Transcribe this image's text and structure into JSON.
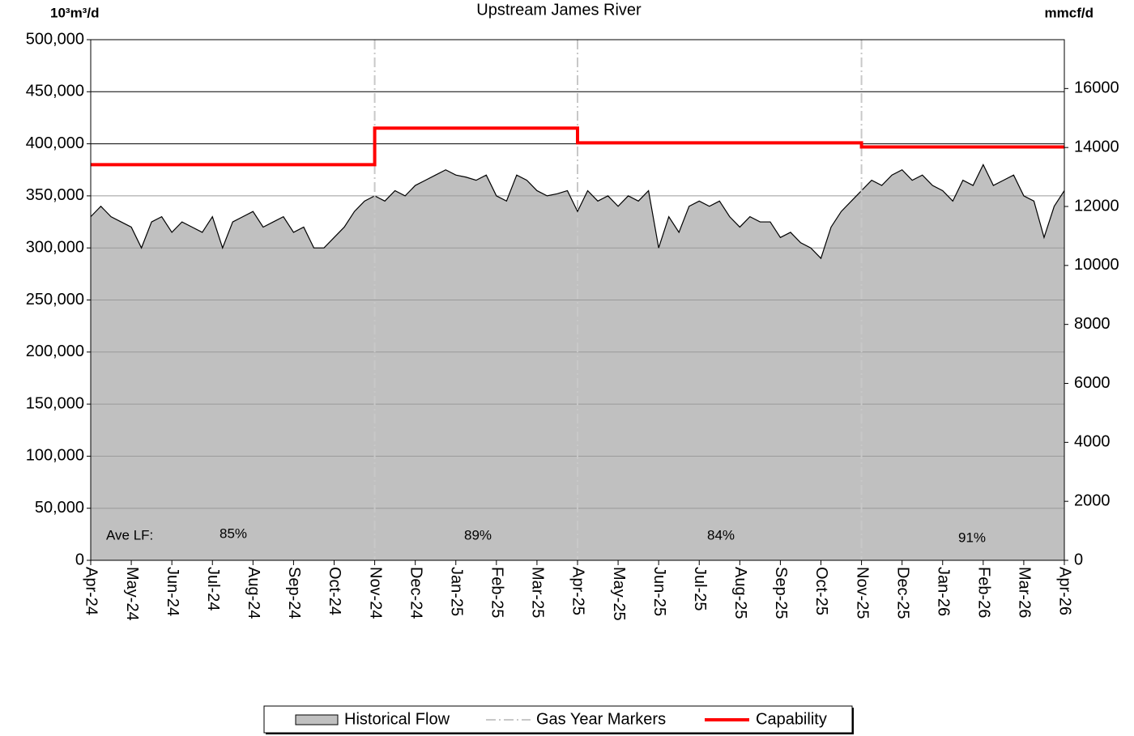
{
  "chart_data": {
    "type": "area",
    "title": "Upstream James River",
    "y_axis_label": "10³m³/d",
    "y2_axis_label": "mmcf/d",
    "xlim": [
      0,
      24
    ],
    "xticks": [
      {
        "value": 0,
        "label": "Apr-24"
      },
      {
        "value": 1,
        "label": "May-24"
      },
      {
        "value": 2,
        "label": "Jun-24"
      },
      {
        "value": 3,
        "label": "Jul-24"
      },
      {
        "value": 4,
        "label": "Aug-24"
      },
      {
        "value": 5,
        "label": "Sep-24"
      },
      {
        "value": 6,
        "label": "Oct-24"
      },
      {
        "value": 7,
        "label": "Nov-24"
      },
      {
        "value": 8,
        "label": "Dec-24"
      },
      {
        "value": 9,
        "label": "Jan-25"
      },
      {
        "value": 10,
        "label": "Feb-25"
      },
      {
        "value": 11,
        "label": "Mar-25"
      },
      {
        "value": 12,
        "label": "Apr-25"
      },
      {
        "value": 13,
        "label": "May-25"
      },
      {
        "value": 14,
        "label": "Jun-25"
      },
      {
        "value": 15,
        "label": "Jul-25"
      },
      {
        "value": 16,
        "label": "Aug-25"
      },
      {
        "value": 17,
        "label": "Sep-25"
      },
      {
        "value": 18,
        "label": "Oct-25"
      },
      {
        "value": 19,
        "label": "Nov-25"
      },
      {
        "value": 20,
        "label": "Dec-25"
      },
      {
        "value": 21,
        "label": "Jan-26"
      },
      {
        "value": 22,
        "label": "Feb-26"
      },
      {
        "value": 23,
        "label": "Mar-26"
      },
      {
        "value": 24,
        "label": "Apr-26"
      }
    ],
    "ylim": [
      0,
      500000
    ],
    "yticks": [
      0,
      {
        "value": 50000,
        "label": "50,000"
      },
      {
        "value": 100000,
        "label": "100,000"
      },
      {
        "value": 150000,
        "label": "150,000"
      },
      {
        "value": 200000,
        "label": "200,000"
      },
      {
        "value": 250000,
        "label": "250,000"
      },
      {
        "value": 300000,
        "label": "300,000"
      },
      {
        "value": 350000,
        "label": "350,000"
      },
      {
        "value": 400000,
        "label": "400,000"
      },
      {
        "value": 450000,
        "label": "450,000"
      },
      {
        "value": 500000,
        "label": "500,000"
      }
    ],
    "y2lim": [
      0,
      17657
    ],
    "y2ticks": [
      0,
      2000,
      4000,
      6000,
      8000,
      10000,
      12000,
      14000,
      16000
    ],
    "grid": true,
    "legend": "bottom",
    "series": [
      {
        "name": "Historical Flow",
        "color": "#c0c0c0",
        "x": [
          0,
          0.25,
          0.5,
          0.75,
          1,
          1.25,
          1.5,
          1.75,
          2,
          2.25,
          2.5,
          2.75,
          3,
          3.25,
          3.5,
          3.75,
          4,
          4.25,
          4.5,
          4.75,
          5,
          5.25,
          5.5,
          5.75,
          6,
          6.25,
          6.5,
          6.75,
          7,
          7.25,
          7.5,
          7.75,
          8,
          8.25,
          8.5,
          8.75,
          9,
          9.25,
          9.5,
          9.75,
          10,
          10.25,
          10.5,
          10.75,
          11,
          11.25,
          11.5,
          11.75,
          12,
          12.25,
          12.5,
          12.75,
          13,
          13.25,
          13.5,
          13.75,
          14,
          14.25,
          14.5,
          14.75,
          15,
          15.25,
          15.5,
          15.75,
          16,
          16.25,
          16.5,
          16.75,
          17,
          17.25,
          17.5,
          17.75,
          18,
          18.25,
          18.5,
          18.75,
          19,
          19.25,
          19.5,
          19.75,
          20,
          20.25,
          20.5,
          20.75,
          21,
          21.25,
          21.5,
          21.75,
          22,
          22.25,
          22.5,
          22.75,
          23,
          23.25,
          23.5,
          23.75,
          24
        ],
        "values": [
          330000,
          340000,
          330000,
          325000,
          320000,
          300000,
          325000,
          330000,
          315000,
          325000,
          320000,
          315000,
          330000,
          300000,
          325000,
          330000,
          335000,
          320000,
          325000,
          330000,
          315000,
          320000,
          300000,
          300000,
          310000,
          320000,
          335000,
          345000,
          350000,
          345000,
          355000,
          350000,
          360000,
          365000,
          370000,
          375000,
          370000,
          368000,
          365000,
          370000,
          350000,
          345000,
          370000,
          365000,
          355000,
          350000,
          352000,
          355000,
          335000,
          355000,
          345000,
          350000,
          340000,
          350000,
          345000,
          355000,
          300000,
          330000,
          315000,
          340000,
          345000,
          340000,
          345000,
          330000,
          320000,
          330000,
          325000,
          325000,
          310000,
          315000,
          305000,
          300000,
          290000,
          320000,
          335000,
          345000,
          355000,
          365000,
          360000,
          370000,
          375000,
          365000,
          370000,
          360000,
          355000,
          345000,
          365000,
          360000,
          380000,
          360000,
          365000,
          370000,
          350000,
          345000,
          310000,
          340000,
          355000
        ]
      },
      {
        "name": "Capability",
        "color": "#ff0000",
        "x": [
          0,
          7,
          7,
          12,
          12,
          19,
          19,
          24
        ],
        "values": [
          380000,
          380000,
          415000,
          415000,
          401000,
          401000,
          397000,
          397000
        ]
      }
    ],
    "gas_year_markers": {
      "name": "Gas Year Markers",
      "color": "#c8c8c8",
      "x": [
        7,
        12,
        19
      ]
    },
    "load_factor": {
      "label": "Ave LF:",
      "values": [
        85,
        89,
        84,
        91
      ],
      "value_labels": [
        "85%",
        "89%",
        "84%",
        "91%"
      ]
    }
  }
}
